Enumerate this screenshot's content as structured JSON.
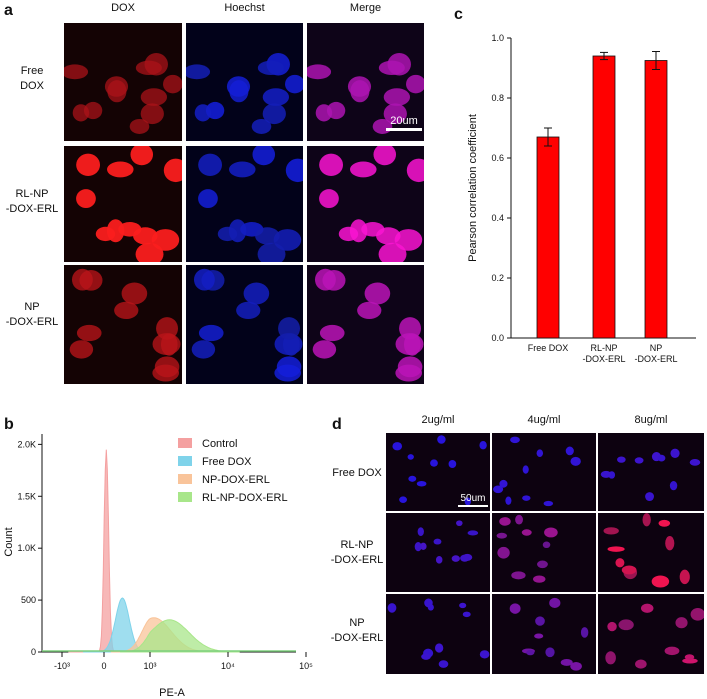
{
  "panel_a": {
    "label": "a",
    "columns": [
      "DOX",
      "Hoechst",
      "Merge"
    ],
    "rows": [
      "Free\nDOX",
      "RL-NP\n-DOX-ERL",
      "NP\n-DOX-ERL"
    ],
    "scale_bar": "20um"
  },
  "panel_c": {
    "label": "c",
    "chart_data": {
      "type": "bar",
      "categories": [
        "Free DOX",
        "RL-NP\n-DOX-ERL",
        "NP\n-DOX-ERL"
      ],
      "values": [
        0.67,
        0.94,
        0.925
      ],
      "errors": [
        0.03,
        0.012,
        0.03
      ],
      "ylabel": "Pearson correlation coefficient",
      "ylim": [
        0.0,
        1.0
      ],
      "yticks": [
        "0.0",
        "0.2",
        "0.4",
        "0.6",
        "0.8",
        "1.0"
      ],
      "bar_color": "#ff0000"
    }
  },
  "panel_b": {
    "label": "b",
    "chart_data": {
      "type": "area",
      "xlabel": "PE-A",
      "ylabel": "Count",
      "xticks": [
        "-10³",
        "0",
        "10³",
        "10⁴",
        "10⁵"
      ],
      "yticks": [
        "0",
        "500",
        "1.0K",
        "1.5K",
        "2.0K"
      ],
      "ylim": [
        0,
        2100
      ],
      "legend_placement": "top-right",
      "series": [
        {
          "name": "Control",
          "color": "#f4a0a0",
          "peak_x": 0.05,
          "peak_y": 1950
        },
        {
          "name": "Free DOX",
          "color": "#7fd3ea",
          "peak_x": 0.4,
          "peak_y": 520
        },
        {
          "name": "NP-DOX-ERL",
          "color": "#f9c49a",
          "peak_x": 1.05,
          "peak_y": 330
        },
        {
          "name": "RL-NP-DOX-ERL",
          "color": "#a8e68a",
          "peak_x": 1.25,
          "peak_y": 310
        }
      ]
    }
  },
  "panel_d": {
    "label": "d",
    "columns": [
      "2ug/ml",
      "4ug/ml",
      "8ug/ml"
    ],
    "rows": [
      "Free DOX",
      "RL-NP\n-DOX-ERL",
      "NP\n-DOX-ERL"
    ],
    "scale_bar": "50um"
  }
}
